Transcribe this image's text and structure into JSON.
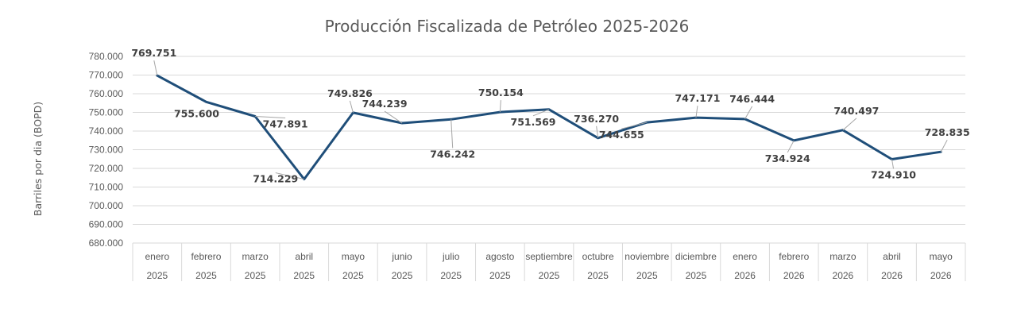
{
  "chart_data": {
    "type": "line",
    "title": "Producción Fiscalizada de Petróleo 2025-2026",
    "ylabel": "Barriles por dia (BOPD)",
    "xlabel": "",
    "ylim": [
      680000,
      780000
    ],
    "ytick_step": 10000,
    "ytick_labels": [
      "680.000",
      "690.000",
      "700.000",
      "710.000",
      "720.000",
      "730.000",
      "740.000",
      "750.000",
      "760.000",
      "770.000",
      "780.000"
    ],
    "grid": true,
    "line_color": "#1f4e79",
    "categories": [
      {
        "month": "enero",
        "year": "2025"
      },
      {
        "month": "febrero",
        "year": "2025"
      },
      {
        "month": "marzo",
        "year": "2025"
      },
      {
        "month": "abril",
        "year": "2025"
      },
      {
        "month": "mayo",
        "year": "2025"
      },
      {
        "month": "junio",
        "year": "2025"
      },
      {
        "month": "julio",
        "year": "2025"
      },
      {
        "month": "agosto",
        "year": "2025"
      },
      {
        "month": "septiembre",
        "year": "2025"
      },
      {
        "month": "octubre",
        "year": "2025"
      },
      {
        "month": "noviembre",
        "year": "2025"
      },
      {
        "month": "diciembre",
        "year": "2025"
      },
      {
        "month": "enero",
        "year": "2026"
      },
      {
        "month": "febrero",
        "year": "2026"
      },
      {
        "month": "marzo",
        "year": "2026"
      },
      {
        "month": "abril",
        "year": "2026"
      },
      {
        "month": "mayo",
        "year": "2026"
      }
    ],
    "series": [
      {
        "values": [
          769751,
          755600,
          747891,
          714229,
          749826,
          744239,
          746242,
          750154,
          751569,
          736270,
          744655,
          747171,
          746444,
          734924,
          740497,
          724910,
          728835
        ],
        "labels": [
          "769.751",
          "755.600",
          "747.891",
          "714.229",
          "749.826",
          "744.239",
          "746.242",
          "750.154",
          "751.569",
          "736.270",
          "744.655",
          "747.171",
          "746.444",
          "734.924",
          "740.497",
          "724.910",
          "728.835"
        ]
      }
    ]
  }
}
